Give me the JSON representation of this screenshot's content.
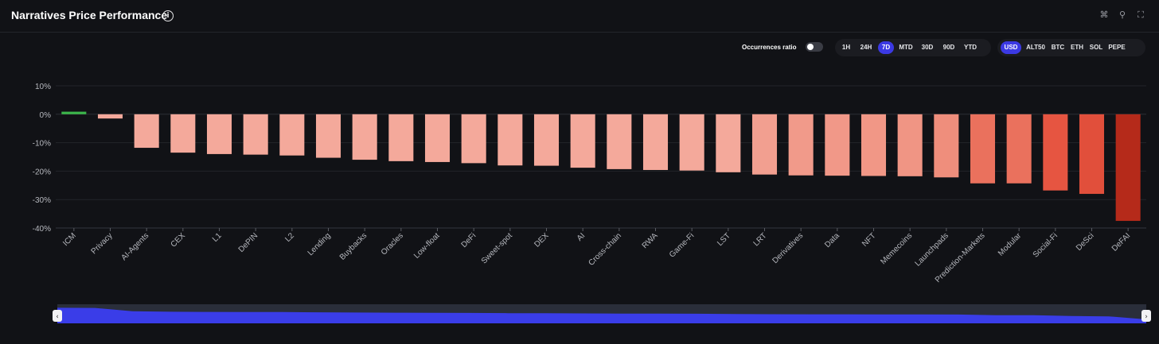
{
  "header": {
    "title": "Narratives Price Performance",
    "info_icon": "info-icon",
    "icons": [
      "share-icon",
      "search-icon",
      "fullscreen-icon"
    ]
  },
  "controls": {
    "occurrences_label": "Occurrences ratio",
    "occurrences_on": false,
    "timeframes": [
      "1H",
      "24H",
      "7D",
      "MTD",
      "30D",
      "90D",
      "YTD"
    ],
    "active_timeframe": "7D",
    "currencies": [
      "USD",
      "ALT50",
      "BTC",
      "ETH",
      "SOL",
      "PEPE"
    ],
    "active_currency": "USD",
    "accent": "#3b39e3"
  },
  "chart_data": {
    "type": "bar",
    "categories": [
      "ICM",
      "Privacy",
      "AI-Agents",
      "CEX",
      "L1",
      "DePIN",
      "L2",
      "Lending",
      "Buybacks",
      "Oracles",
      "Low-float",
      "DeFi",
      "Sweet-spot",
      "DEX",
      "AI",
      "Cross-chain",
      "RWA",
      "Game-Fi",
      "LST",
      "LRT",
      "Derivatives",
      "Data",
      "NFT",
      "Memecoins",
      "Launchpads",
      "Prediction-Markets",
      "Modular",
      "Social-Fi",
      "DeSci",
      "DeFAI"
    ],
    "values": [
      0.9,
      -1.5,
      -11.8,
      -13.5,
      -14.0,
      -14.2,
      -14.5,
      -15.3,
      -16.0,
      -16.5,
      -16.8,
      -17.2,
      -18.0,
      -18.1,
      -18.8,
      -19.3,
      -19.6,
      -19.8,
      -20.4,
      -21.2,
      -21.5,
      -21.6,
      -21.7,
      -21.8,
      -22.2,
      -24.3,
      -24.3,
      -26.8,
      -28.0,
      -37.5
    ],
    "ylim": [
      -40,
      10
    ],
    "yticks": [
      10,
      0,
      -10,
      -20,
      -30,
      -40
    ],
    "ytick_labels": [
      "10%",
      "0%",
      "-10%",
      "-20%",
      "-30%",
      "-40%"
    ],
    "grid": true,
    "colors": {
      "positive": "#3bb54a",
      "light": "#f4a99b",
      "mid": "#ec7c68",
      "strong": "#e6533f",
      "darkest": "#b52a1a"
    }
  },
  "zoom_slider": {
    "range_start": 0,
    "range_end": 1
  }
}
